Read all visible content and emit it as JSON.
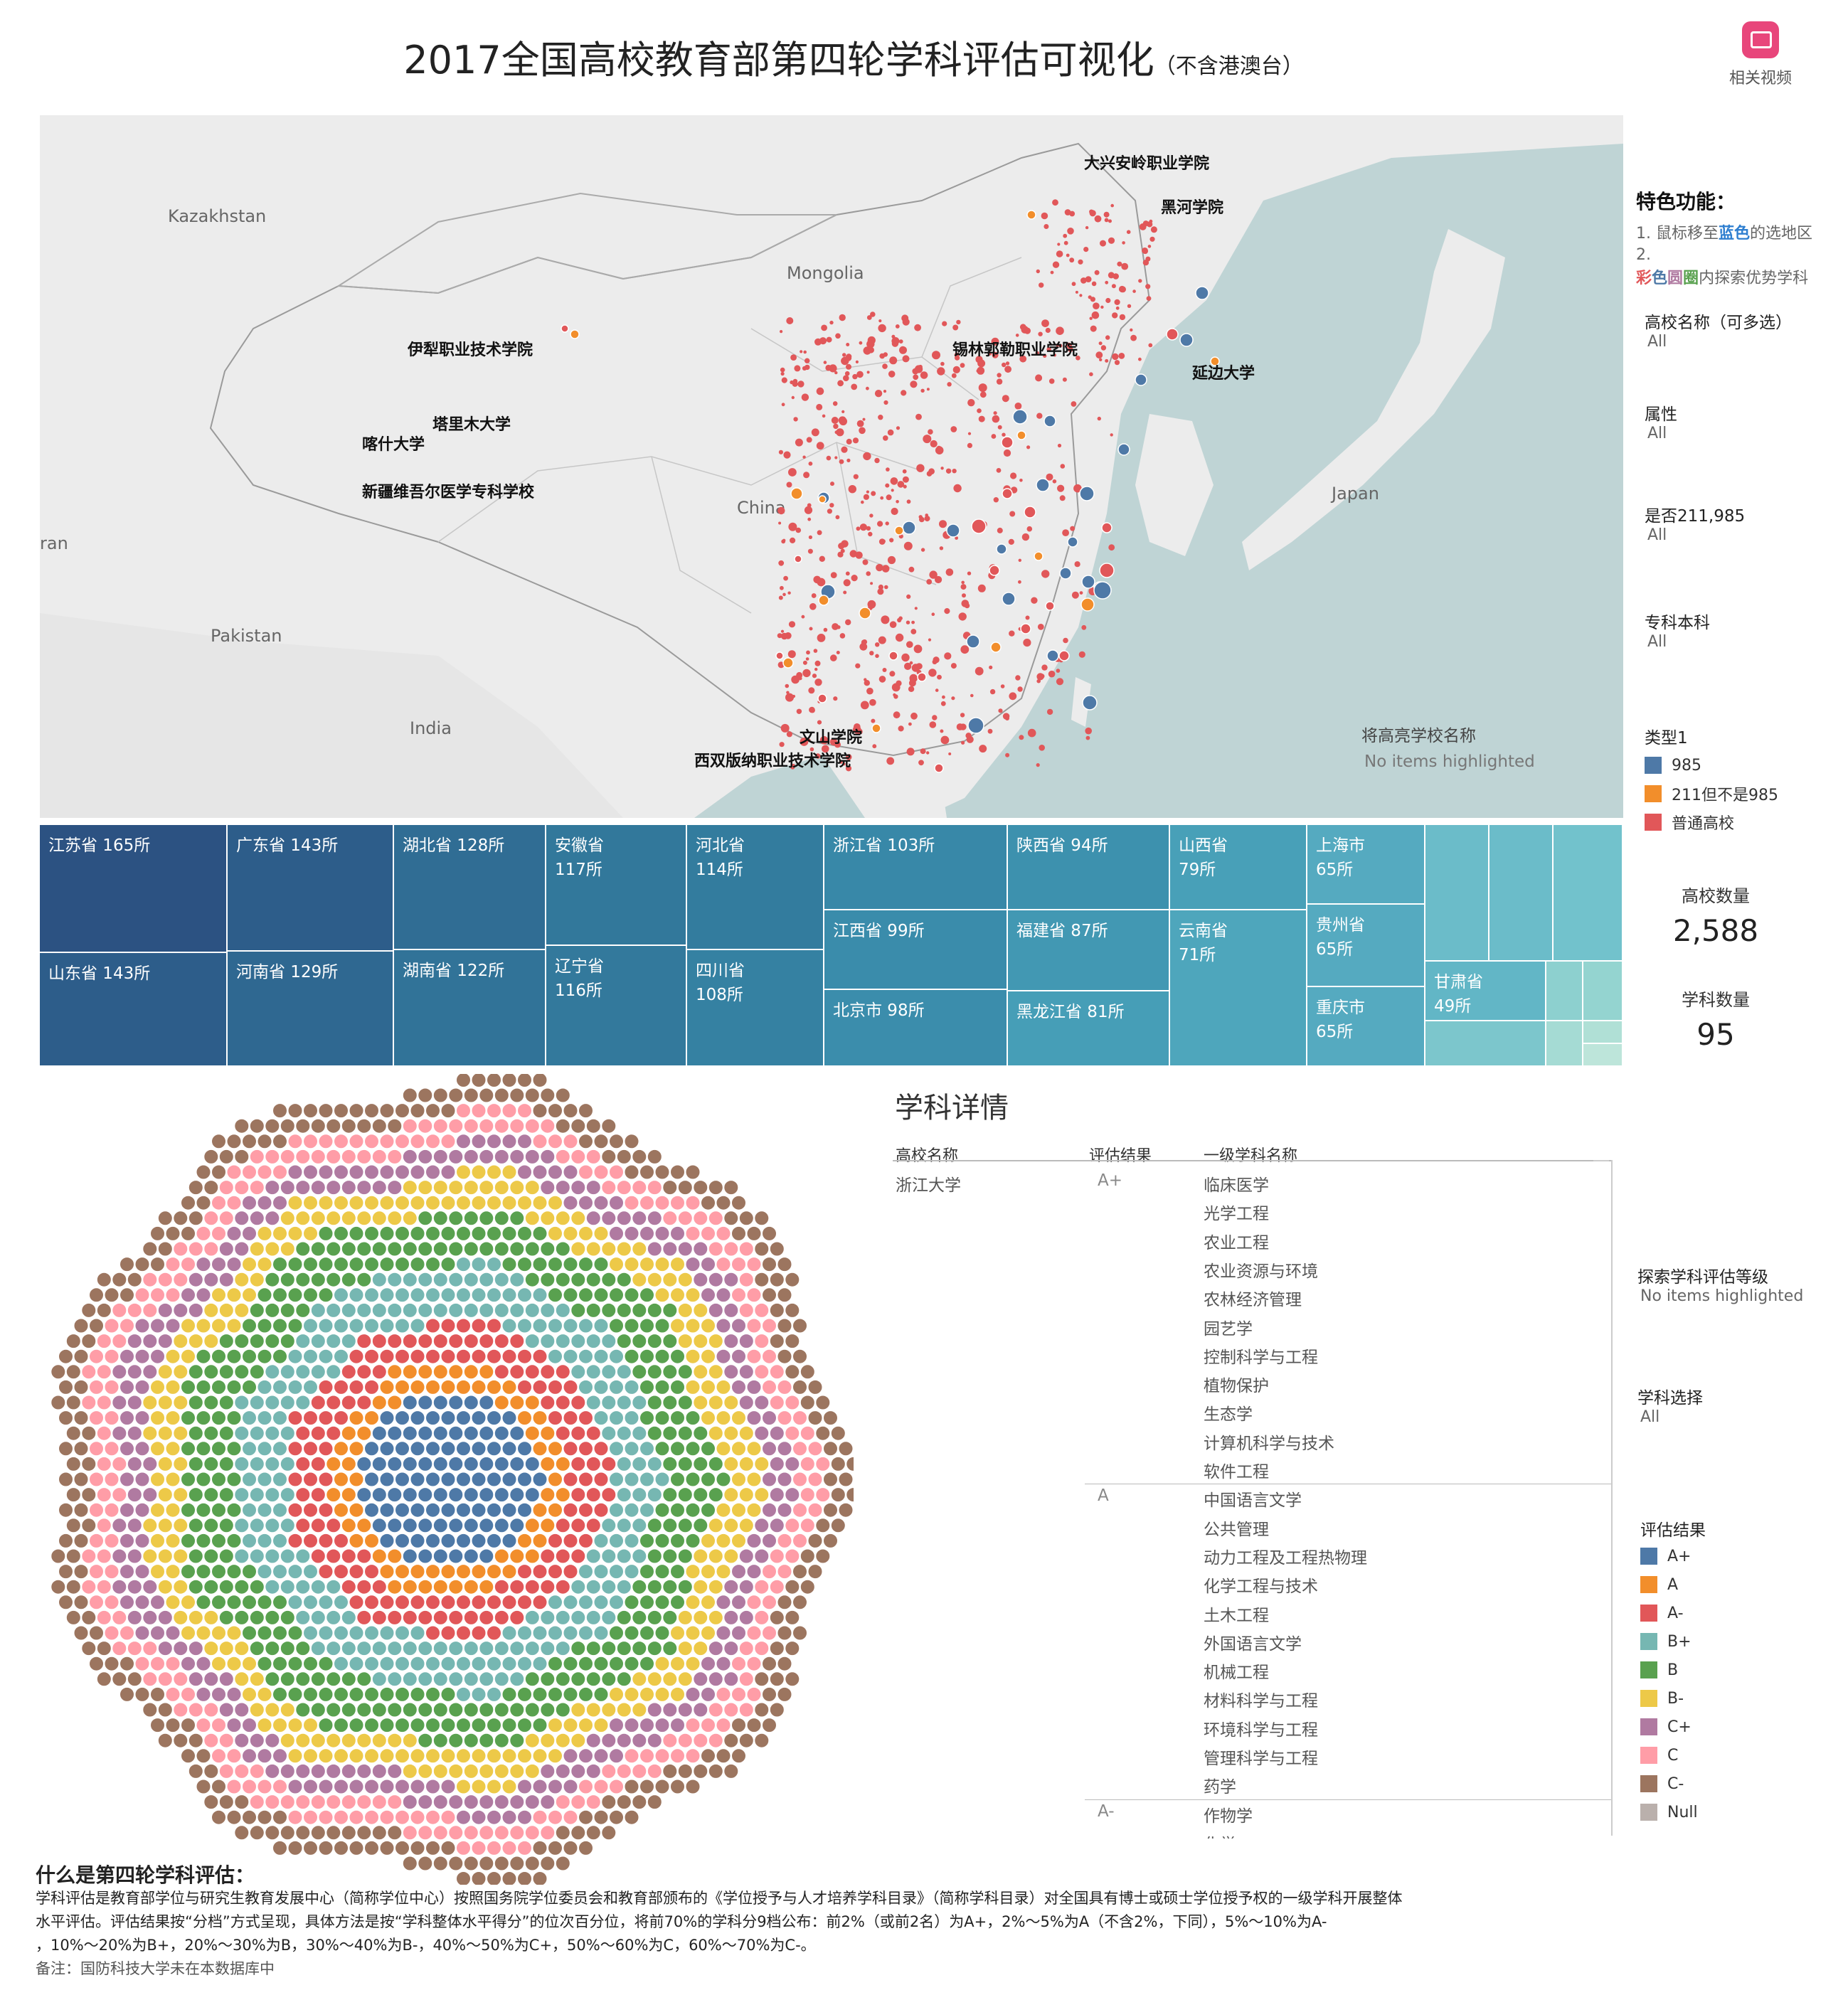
{
  "title": {
    "main": "2017全国高校教育部第四轮学科评估可视化",
    "sub": "（不含港澳台）"
  },
  "video_button": {
    "label": "相关视频"
  },
  "map": {
    "countries": [
      "Kazakhstan",
      "Mongolia",
      "China",
      "Japan",
      "Pakistan",
      "India",
      "ran"
    ],
    "school_labels": [
      "大兴安岭职业学院",
      "黑河学院",
      "伊犁职业技术学院",
      "锡林郭勒职业学院",
      "延边大学",
      "塔里木大学",
      "喀什大学",
      "新疆维吾尔医学专科学校",
      "文山学院",
      "西双版纳职业技术学院"
    ],
    "highlight_title": "将高亮学校名称",
    "highlight_value": "No items highlighted"
  },
  "treemap": [
    {
      "name": "江苏省 165所",
      "count": 165,
      "color": "#2c5282"
    },
    {
      "name": "山东省 143所",
      "count": 143,
      "color": "#2d5d8a"
    },
    {
      "name": "广东省 143所",
      "count": 143,
      "color": "#2d5d8a"
    },
    {
      "name": "河南省 129所",
      "count": 129,
      "color": "#2f6891"
    },
    {
      "name": "湖北省 128所",
      "count": 128,
      "color": "#306d94"
    },
    {
      "name": "湖南省 122所",
      "count": 122,
      "color": "#317398"
    },
    {
      "name": "安徽省 117所",
      "count": 117,
      "color": "#32789b"
    },
    {
      "name": "辽宁省 116所",
      "count": 116,
      "color": "#33799c"
    },
    {
      "name": "河北省 114所",
      "count": 114,
      "color": "#337c9e"
    },
    {
      "name": "四川省 108所",
      "count": 108,
      "color": "#3581a2"
    },
    {
      "name": "浙江省 103所",
      "count": 103,
      "color": "#3888a8"
    },
    {
      "name": "江西省 99所",
      "count": 99,
      "color": "#3a8cab"
    },
    {
      "name": "北京市 98所",
      "count": 98,
      "color": "#3b8dac"
    },
    {
      "name": "陕西省 94所",
      "count": 94,
      "color": "#3d91ae"
    },
    {
      "name": "福建省 87所",
      "count": 87,
      "color": "#4298b3"
    },
    {
      "name": "黑龙江省 81所",
      "count": 81,
      "color": "#469eb7"
    },
    {
      "name": "山西省 79所",
      "count": 79,
      "color": "#48a0b8"
    },
    {
      "name": "云南省 71所",
      "count": 71,
      "color": "#4ea6bc"
    },
    {
      "name": "上海市 65所",
      "count": 65,
      "color": "#55aac0"
    },
    {
      "name": "贵州省 65所",
      "count": 65,
      "color": "#55aac0"
    },
    {
      "name": "重庆市 65所",
      "count": 65,
      "color": "#55aac0"
    },
    {
      "name": "甘肃省 49所",
      "count": 49,
      "color": "#62b6c6"
    }
  ],
  "sidebar": {
    "features_title": "特色功能：",
    "feature1": "1. 鼠标移至",
    "feature1_blue": "蓝色",
    "feature1_rest": "的选地区",
    "feature2": "2.",
    "feature2_c1": "彩",
    "feature2_c2": "色",
    "feature2_c3": "圆",
    "feature2_c4": "圈",
    "feature2_rest": "内探索优势学科",
    "filters": [
      {
        "label": "高校名称（可多选）",
        "value": "All"
      },
      {
        "label": "属性",
        "value": "All"
      },
      {
        "label": "是否211,985",
        "value": "All"
      },
      {
        "label": "专科本科",
        "value": "All"
      }
    ],
    "type_legend_title": "类型1",
    "type_legend": [
      {
        "label": "985",
        "color": "#4e79a7"
      },
      {
        "label": "211但不是985",
        "color": "#f28e2b"
      },
      {
        "label": "普通高校",
        "color": "#e15759"
      }
    ],
    "kpi_schools_label": "高校数量",
    "kpi_schools_value": "2,588",
    "kpi_subjects_label": "学科数量",
    "kpi_subjects_value": "95",
    "explore_label": "探索学科评估等级",
    "explore_value": "No items highlighted",
    "subject_select_label": "学科选择",
    "subject_select_value": "All",
    "grade_legend_title": "评估结果",
    "grade_legend": [
      {
        "label": "A+",
        "color": "#4e79a7"
      },
      {
        "label": "A",
        "color": "#f28e2b"
      },
      {
        "label": "A-",
        "color": "#e15759"
      },
      {
        "label": "B+",
        "color": "#76b7b2"
      },
      {
        "label": "B",
        "color": "#59a14f"
      },
      {
        "label": "B-",
        "color": "#edc948"
      },
      {
        "label": "C+",
        "color": "#b07aa1"
      },
      {
        "label": "C",
        "color": "#ff9da7"
      },
      {
        "label": "C-",
        "color": "#9c755f"
      },
      {
        "label": "Null",
        "color": "#bab0ac"
      }
    ]
  },
  "detail": {
    "title": "学科详情",
    "headers": [
      "高校名称",
      "评估结果",
      "一级学科名称"
    ],
    "school": "浙江大学",
    "groups": [
      {
        "grade": "A+",
        "subjects": [
          "临床医学",
          "光学工程",
          "农业工程",
          "农业资源与环境",
          "农林经济管理",
          "园艺学",
          "控制科学与工程",
          "植物保护",
          "生态学",
          "计算机科学与技术",
          "软件工程"
        ]
      },
      {
        "grade": "A",
        "subjects": [
          "中国语言文学",
          "公共管理",
          "动力工程及工程热物理",
          "化学工程与技术",
          "土木工程",
          "外国语言文学",
          "机械工程",
          "材料科学与工程",
          "环境科学与工程",
          "管理科学与工程",
          "药学"
        ]
      },
      {
        "grade": "A-",
        "subjects": [
          "作物学",
          "化学"
        ]
      }
    ]
  },
  "chart_data": {
    "type": "scatter",
    "description_rings": [
      "A+",
      "A",
      "A-",
      "B+",
      "B",
      "B-",
      "C+",
      "C",
      "C-"
    ],
    "ring_colors": [
      "#4e79a7",
      "#f28e2b",
      "#e15759",
      "#76b7b2",
      "#59a14f",
      "#edc948",
      "#b07aa1",
      "#ff9da7",
      "#9c755f"
    ]
  },
  "about": {
    "title": "什么是第四轮学科评估：",
    "line1": "学科评估是教育部学位与研究生教育发展中心（简称学位中心）按照国务院学位委员会和教育部颁布的《学位授予与人才培养学科目录》（简称学科目录）对全国具有博士或硕士学位授予权的一级学科开展整体",
    "line2": "水平评估。评估结果按“分档”方式呈现，具体方法是按“学科整体水平得分”的位次百分位，将前70%的学科分9档公布：前2%（或前2名）为A+，2%～5%为A（不含2%，下同），5%～10%为A-",
    "line3": "，10%～20%为B+，20%～30%为B，30%～40%为B-，40%～50%为C+，50%～60%为C，60%～70%为C-。",
    "note": "备注：国防科技大学未在本数据库中"
  }
}
